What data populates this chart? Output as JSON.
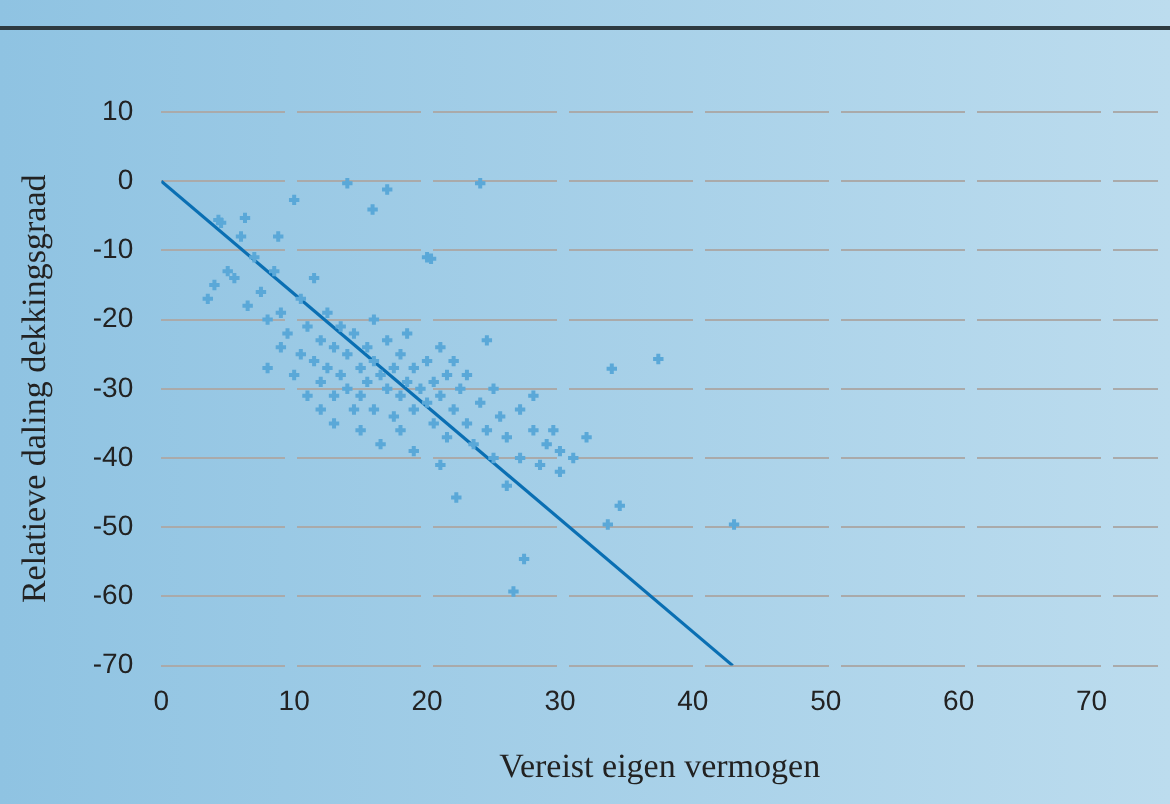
{
  "chart_data": {
    "type": "scatter",
    "xlabel": "Vereist eigen vermogen",
    "ylabel": "Relatieve daling dekkingsgraad",
    "xlim": [
      0,
      75
    ],
    "xticks": [
      0,
      10,
      20,
      30,
      40,
      50,
      60,
      70
    ],
    "ylim": [
      -70,
      10
    ],
    "yticks": [
      10,
      0,
      -10,
      -20,
      -30,
      -40,
      -50,
      -60,
      -70
    ],
    "grid": "y",
    "legend": false,
    "marker": "cross",
    "series": [
      {
        "color": "#5aa8d8",
        "x": [
          3.5,
          4,
          4.5,
          5,
          5.5,
          6,
          6.5,
          7,
          7.5,
          8,
          8,
          8.5,
          9,
          9,
          9.5,
          10,
          10,
          10.5,
          10.5,
          11,
          11,
          11.5,
          11.5,
          12,
          12,
          12,
          12.5,
          12.5,
          13,
          13,
          13,
          13.5,
          13.5,
          14,
          14,
          14,
          14.5,
          14.5,
          15,
          15,
          15,
          15.5,
          15.5,
          16,
          16,
          16,
          16.5,
          16.5,
          17,
          17,
          17,
          17.5,
          17.5,
          18,
          18,
          18,
          18.5,
          18.5,
          19,
          19,
          19,
          19.5,
          20,
          20,
          20,
          20.5,
          20.5,
          21,
          21,
          21,
          21.5,
          21.5,
          22,
          22,
          22.2,
          22.5,
          23,
          23,
          23.5,
          24,
          24,
          24.5,
          24.5,
          25,
          25,
          25.5,
          26,
          26,
          26.5,
          27,
          27,
          27.3,
          28,
          28,
          28.5,
          29,
          29.5,
          30,
          30,
          31,
          32,
          33.6,
          33.9,
          34.5,
          37.4,
          43.1,
          15.9,
          6.3,
          8.8,
          4.3,
          20.3
        ],
        "values": [
          -17,
          -15,
          -6,
          -13,
          -14,
          -8,
          -18,
          -11,
          -16,
          -20,
          -27,
          -13,
          -19,
          -24,
          -22,
          -2.7,
          -28,
          -17,
          -25,
          -21,
          -31,
          -14,
          -26,
          -23,
          -29,
          -33,
          -19,
          -27,
          -24,
          -31,
          -35,
          -21,
          -28,
          -25,
          -30,
          -0.3,
          -33,
          -22,
          -27,
          -31,
          -36,
          -24,
          -29,
          -20,
          -26,
          -33,
          -28,
          -38,
          -23,
          -30,
          -1.2,
          -27,
          -34,
          -25,
          -31,
          -36,
          -29,
          -22,
          -27,
          -33,
          -39,
          -30,
          -26,
          -32,
          -11,
          -35,
          -29,
          -24,
          -31,
          -41,
          -28,
          -37,
          -33,
          -26,
          -45.7,
          -30,
          -35,
          -28,
          -38,
          -32,
          -0.3,
          -36,
          -23,
          -30,
          -40,
          -34,
          -37,
          -44,
          -59.3,
          -33,
          -40,
          -54.6,
          -36,
          -31,
          -41,
          -38,
          -36,
          -42,
          -39,
          -40,
          -37,
          -49.6,
          -27.1,
          -46.9,
          -25.7,
          -49.6,
          -4.1,
          -5.3,
          -8,
          -5.6,
          -11.2
        ]
      },
      {
        "type": "line",
        "color": "#0a6fb3",
        "marker": "none",
        "x": [
          0,
          43
        ],
        "values": [
          0,
          -70
        ]
      }
    ]
  }
}
